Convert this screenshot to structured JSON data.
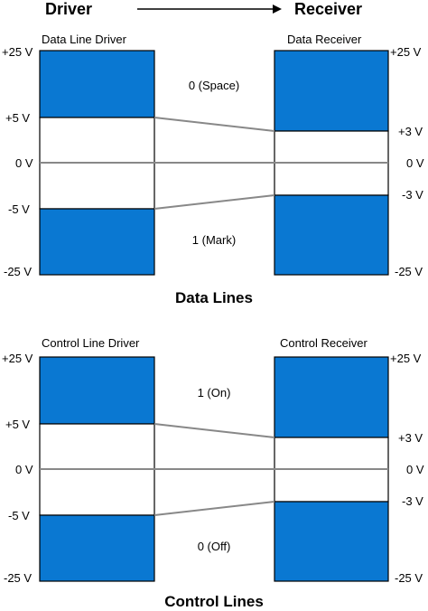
{
  "header": {
    "driver_label": "Driver",
    "receiver_label": "Receiver",
    "arrow_icon": "right-arrow-icon"
  },
  "colors": {
    "blue": "#0a78d2",
    "connector": "#888888"
  },
  "data_lines": {
    "title": "Data Lines",
    "driver_title": "Data Line Driver",
    "receiver_title": "Data Receiver",
    "driver_voltages": {
      "top": "+25 V",
      "upper": "+5 V",
      "zero": "0 V",
      "lower": "-5 V",
      "bottom": "-25 V"
    },
    "receiver_voltages": {
      "top": "+25 V",
      "upper": "+3 V",
      "zero": "0 V",
      "lower": "-3 V",
      "bottom": "-25 V"
    },
    "upper_state": "0 (Space)",
    "lower_state": "1 (Mark)"
  },
  "control_lines": {
    "title": "Control Lines",
    "driver_title": "Control Line Driver",
    "receiver_title": "Control Receiver",
    "driver_voltages": {
      "top": "+25 V",
      "upper": "+5 V",
      "zero": "0 V",
      "lower": "-5 V",
      "bottom": "-25 V"
    },
    "receiver_voltages": {
      "top": "+25 V",
      "upper": "+3 V",
      "zero": "0 V",
      "lower": "-3 V",
      "bottom": "-25 V"
    },
    "upper_state": "1 (On)",
    "lower_state": "0 (Off)"
  }
}
